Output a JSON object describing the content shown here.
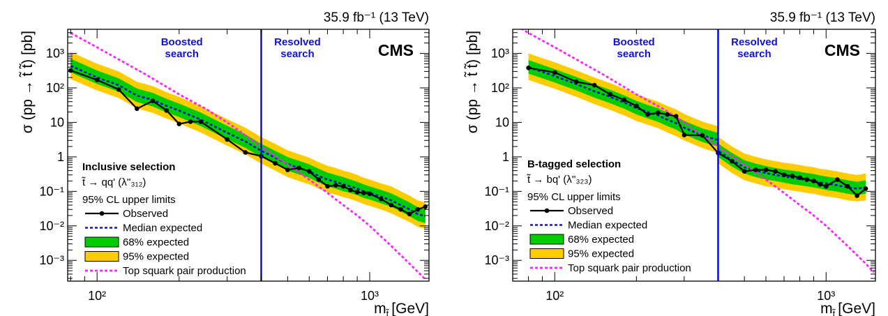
{
  "colors": {
    "band95": "#ffcc00",
    "band68": "#00cc00",
    "observed": "#000000",
    "median": "#1010d8",
    "theory": "#ff22ff",
    "boundary": "#0000ee"
  },
  "chart_data": [
    {
      "type": "line",
      "panel": "left",
      "lumi_label": "35.9 fb⁻¹ (13 TeV)",
      "experiment": "CMS",
      "region_labels": [
        {
          "line1": "Boosted",
          "line2": "search"
        },
        {
          "line1": "Resolved",
          "line2": "search"
        }
      ],
      "xlabel": "m",
      "xlabel_sub": "t̃",
      "xlabel_unit": "[GeV]",
      "ylabel": "σ (pp → t̃ t̃) [pb]",
      "x_scale": "log",
      "y_scale": "log",
      "xlim": [
        78,
        1650
      ],
      "ylim": [
        0.00025,
        5000
      ],
      "x_ticks": [
        {
          "v": 100,
          "label": "10²"
        },
        {
          "v": 1000,
          "label": "10³"
        }
      ],
      "y_ticks": [
        {
          "v": 0.001,
          "label": "10⁻³"
        },
        {
          "v": 0.01,
          "label": "10⁻²"
        },
        {
          "v": 0.1,
          "label": "10⁻¹"
        },
        {
          "v": 1,
          "label": "1"
        },
        {
          "v": 10,
          "label": "10"
        },
        {
          "v": 100,
          "label": "10²"
        },
        {
          "v": 1000,
          "label": "10³"
        }
      ],
      "boundary_x": 400,
      "legend": {
        "header": "Inclusive selection",
        "decay": "t̃ → qq' (λ''₃₁₂)",
        "subheader": "95% CL upper limits",
        "entries": [
          {
            "label": "Observed",
            "kind": "observed"
          },
          {
            "label": "Median expected",
            "kind": "median"
          },
          {
            "label": "68% expected",
            "kind": "band68"
          },
          {
            "label": "95% expected",
            "kind": "band95"
          },
          {
            "label": "Top squark pair production",
            "kind": "theory"
          }
        ]
      },
      "observed": {
        "x": [
          80,
          100,
          120,
          140,
          160,
          180,
          200,
          220,
          240,
          300,
          350,
          400,
          450,
          500,
          550,
          600,
          650,
          700,
          750,
          800,
          850,
          900,
          950,
          1000,
          1100,
          1200,
          1300,
          1400,
          1500,
          1600
        ],
        "y": [
          320,
          170,
          90,
          25,
          42,
          22,
          9,
          10.5,
          10.5,
          3.2,
          1.35,
          1.05,
          0.65,
          0.42,
          0.48,
          0.38,
          0.22,
          0.14,
          0.15,
          0.14,
          0.11,
          0.095,
          0.09,
          0.085,
          0.06,
          0.04,
          0.03,
          0.022,
          0.03,
          0.036
        ]
      },
      "expected": {
        "x": [
          80,
          100,
          120,
          140,
          160,
          180,
          200,
          220,
          240,
          300,
          350,
          400,
          450,
          500,
          550,
          600,
          650,
          700,
          750,
          800,
          850,
          900,
          950,
          1000,
          1100,
          1200,
          1300,
          1400,
          1500,
          1600
        ],
        "median": [
          440,
          200,
          120,
          60,
          45,
          30,
          22,
          16,
          12,
          5,
          2.8,
          1.5,
          0.95,
          0.62,
          0.48,
          0.38,
          0.28,
          0.22,
          0.19,
          0.16,
          0.14,
          0.12,
          0.1,
          0.09,
          0.07,
          0.055,
          0.04,
          0.03,
          0.022,
          0.019
        ],
        "lo68": [
          280,
          130,
          78,
          39,
          29,
          19.5,
          14.3,
          10.4,
          7.8,
          3.25,
          1.82,
          0.98,
          0.62,
          0.4,
          0.31,
          0.25,
          0.18,
          0.14,
          0.12,
          0.1,
          0.09,
          0.078,
          0.065,
          0.058,
          0.045,
          0.036,
          0.026,
          0.019,
          0.014,
          0.012
        ],
        "hi68": [
          700,
          320,
          190,
          96,
          72,
          48,
          35,
          25.6,
          19.2,
          8,
          4.5,
          2.4,
          1.5,
          0.99,
          0.77,
          0.61,
          0.45,
          0.35,
          0.3,
          0.26,
          0.22,
          0.19,
          0.16,
          0.14,
          0.11,
          0.088,
          0.064,
          0.048,
          0.035,
          0.03
        ],
        "lo95": [
          180,
          85,
          51,
          25.5,
          19,
          12.8,
          9.4,
          6.8,
          5.1,
          2.13,
          1.19,
          0.64,
          0.4,
          0.26,
          0.2,
          0.16,
          0.12,
          0.094,
          0.08,
          0.068,
          0.06,
          0.051,
          0.043,
          0.038,
          0.03,
          0.023,
          0.017,
          0.013,
          0.0094,
          0.0081
        ],
        "hi95": [
          1100,
          500,
          300,
          150,
          113,
          75,
          55,
          40,
          30,
          12.5,
          7,
          3.75,
          2.4,
          1.55,
          1.2,
          0.95,
          0.7,
          0.55,
          0.48,
          0.4,
          0.35,
          0.3,
          0.25,
          0.22,
          0.17,
          0.14,
          0.1,
          0.075,
          0.055,
          0.048
        ]
      },
      "theory": {
        "x": [
          80,
          100,
          150,
          200,
          250,
          300,
          400,
          500,
          600,
          700,
          800,
          900,
          1000,
          1200,
          1400,
          1600
        ],
        "y": [
          3900,
          1500,
          250,
          65,
          25,
          10,
          2,
          0.6,
          0.22,
          0.09,
          0.04,
          0.02,
          0.01,
          0.0026,
          0.0008,
          0.00028
        ]
      }
    },
    {
      "type": "line",
      "panel": "right",
      "lumi_label": "35.9 fb⁻¹ (13 TeV)",
      "experiment": "CMS",
      "region_labels": [
        {
          "line1": "Boosted",
          "line2": "search"
        },
        {
          "line1": "Resolved",
          "line2": "search"
        }
      ],
      "xlabel": "m",
      "xlabel_sub": "t̃",
      "xlabel_unit": "[GeV]",
      "ylabel": "σ (pp → t̃ t̃) [pb]",
      "x_scale": "log",
      "y_scale": "log",
      "xlim": [
        70,
        1520
      ],
      "ylim": [
        0.00025,
        5000
      ],
      "x_ticks": [
        {
          "v": 100,
          "label": "10²"
        },
        {
          "v": 1000,
          "label": "10³"
        }
      ],
      "y_ticks": [
        {
          "v": 0.001,
          "label": "10⁻³"
        },
        {
          "v": 0.01,
          "label": "10⁻²"
        },
        {
          "v": 0.1,
          "label": "10⁻¹"
        },
        {
          "v": 1,
          "label": "1"
        },
        {
          "v": 10,
          "label": "10"
        },
        {
          "v": 100,
          "label": "10²"
        },
        {
          "v": 1000,
          "label": "10³"
        }
      ],
      "boundary_x": 400,
      "legend": {
        "header": "B-tagged selection",
        "decay": "t̃ → bq' (λ''₃₂₃)",
        "subheader": "95% CL upper limits",
        "entries": [
          {
            "label": "Observed",
            "kind": "observed"
          },
          {
            "label": "Median expected",
            "kind": "median"
          },
          {
            "label": "68% expected",
            "kind": "band68"
          },
          {
            "label": "95% expected",
            "kind": "band95"
          },
          {
            "label": "Top squark pair production",
            "kind": "theory"
          }
        ]
      },
      "observed": {
        "x": [
          80,
          100,
          120,
          140,
          160,
          180,
          200,
          220,
          240,
          260,
          280,
          300,
          350,
          400,
          450,
          500,
          550,
          600,
          650,
          700,
          750,
          800,
          850,
          900,
          950,
          1000,
          1100,
          1200,
          1300,
          1400
        ],
        "y": [
          380,
          280,
          150,
          120,
          65,
          45,
          30,
          17,
          19,
          17,
          15,
          4.3,
          4.2,
          1.3,
          0.75,
          0.38,
          0.42,
          0.42,
          0.38,
          0.3,
          0.28,
          0.25,
          0.22,
          0.2,
          0.16,
          0.14,
          0.22,
          0.14,
          0.075,
          0.12
        ]
      },
      "expected": {
        "x": [
          80,
          100,
          120,
          140,
          160,
          180,
          200,
          220,
          240,
          260,
          280,
          300,
          350,
          399,
          401,
          450,
          500,
          550,
          600,
          650,
          700,
          750,
          800,
          850,
          900,
          950,
          1000,
          1100,
          1200,
          1300,
          1400
        ],
        "median": [
          400,
          220,
          130,
          80,
          55,
          38,
          26,
          20,
          16,
          12,
          9.5,
          7,
          4.2,
          3.1,
          1.5,
          0.8,
          0.5,
          0.4,
          0.34,
          0.3,
          0.27,
          0.25,
          0.23,
          0.21,
          0.2,
          0.18,
          0.17,
          0.15,
          0.13,
          0.12,
          0.13
        ],
        "lo68": [
          260,
          143,
          85,
          52,
          36,
          25,
          17,
          13,
          10.4,
          7.8,
          6.2,
          4.5,
          2.7,
          2,
          0.98,
          0.52,
          0.33,
          0.26,
          0.22,
          0.2,
          0.18,
          0.16,
          0.15,
          0.14,
          0.13,
          0.12,
          0.11,
          0.098,
          0.085,
          0.078,
          0.085
        ],
        "hi68": [
          640,
          350,
          208,
          128,
          88,
          61,
          42,
          32,
          26,
          19,
          15,
          11,
          6.7,
          5,
          2.4,
          1.3,
          0.8,
          0.64,
          0.54,
          0.48,
          0.43,
          0.4,
          0.37,
          0.34,
          0.32,
          0.29,
          0.27,
          0.24,
          0.21,
          0.19,
          0.21
        ],
        "lo95": [
          170,
          94,
          55,
          34,
          23,
          16,
          11,
          8.5,
          6.8,
          5.1,
          4,
          3,
          1.8,
          1.3,
          0.64,
          0.34,
          0.21,
          0.17,
          0.14,
          0.13,
          0.115,
          0.106,
          0.098,
          0.09,
          0.085,
          0.077,
          0.072,
          0.064,
          0.055,
          0.051,
          0.055
        ],
        "hi95": [
          1000,
          550,
          325,
          200,
          138,
          95,
          65,
          50,
          40,
          30,
          24,
          17.5,
          10.5,
          7.8,
          3.75,
          2,
          1.25,
          1,
          0.85,
          0.75,
          0.68,
          0.63,
          0.58,
          0.53,
          0.5,
          0.45,
          0.43,
          0.38,
          0.33,
          0.3,
          0.33
        ]
      },
      "theory": {
        "x": [
          70,
          80,
          100,
          150,
          200,
          250,
          300,
          400,
          500,
          600,
          700,
          800,
          900,
          1000,
          1200,
          1400,
          1500
        ],
        "y": [
          7500,
          3900,
          1500,
          250,
          65,
          25,
          10,
          2,
          0.6,
          0.22,
          0.09,
          0.04,
          0.02,
          0.01,
          0.0026,
          0.0008,
          0.00045
        ]
      }
    }
  ]
}
